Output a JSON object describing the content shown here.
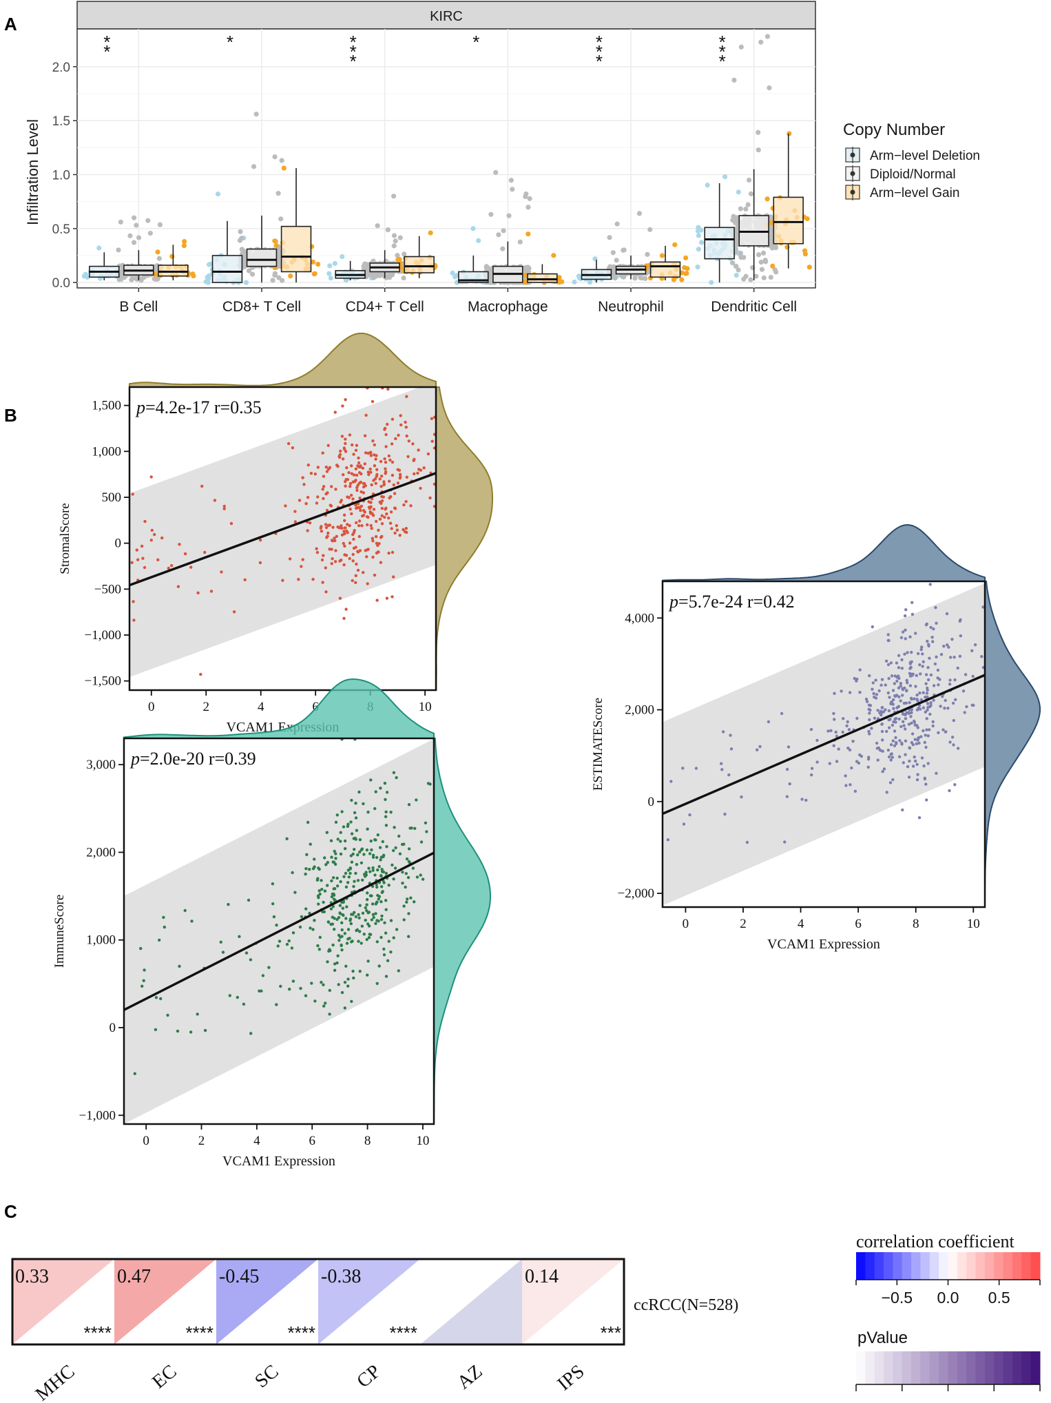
{
  "panels": {
    "A": "A",
    "B": "B",
    "C": "C"
  },
  "chart_data": [
    {
      "id": "A",
      "type": "box",
      "title": "KIRC",
      "ylabel": "Infiltration Level",
      "ylim": [
        -0.05,
        2.35
      ],
      "yticks": [
        "0.0",
        "0.5",
        "1.0",
        "1.5",
        "2.0"
      ],
      "ytick_values": [
        0,
        0.5,
        1.0,
        1.5,
        2.0
      ],
      "categories": [
        "B Cell",
        "CD8+ T Cell",
        "CD4+ T Cell",
        "Macrophage",
        "Neutrophil",
        "Dendritic Cell"
      ],
      "significance": [
        "**",
        "*",
        "***",
        "*",
        "***",
        "***"
      ],
      "legend": {
        "title": "Copy Number",
        "entries": [
          "Arm−level Deletion",
          "Diploid/Normal",
          "Arm−level Gain"
        ],
        "position": "right"
      },
      "groups": [
        {
          "name": "Arm-level Deletion",
          "fill": "#e2eef3",
          "points": "#a9d8ea",
          "box": [
            [
              0.02,
              0.05,
              0.1,
              0.15,
              0.28
            ],
            [
              0.0,
              0.0,
              0.1,
              0.25,
              0.57
            ],
            [
              0.02,
              0.04,
              0.07,
              0.11,
              0.2
            ],
            [
              0.0,
              0.0,
              0.02,
              0.1,
              0.25
            ],
            [
              0.0,
              0.03,
              0.07,
              0.12,
              0.21
            ],
            [
              0.0,
              0.22,
              0.4,
              0.51,
              0.92
            ]
          ],
          "n": [
            20,
            30,
            28,
            28,
            26,
            40
          ],
          "max": [
            0.32,
            0.82,
            0.24,
            0.5,
            0.22,
            0.98
          ]
        },
        {
          "name": "Diploid/Normal",
          "fill": "#f2f2f2",
          "points": "#bcbcbc",
          "box": [
            [
              0.02,
              0.07,
              0.11,
              0.16,
              0.3
            ],
            [
              0.0,
              0.15,
              0.21,
              0.31,
              0.62
            ],
            [
              0.04,
              0.1,
              0.14,
              0.18,
              0.3
            ],
            [
              0.0,
              0.0,
              0.08,
              0.15,
              0.38
            ],
            [
              0.03,
              0.08,
              0.12,
              0.15,
              0.25
            ],
            [
              0.02,
              0.34,
              0.47,
              0.62,
              1.05
            ]
          ],
          "n": [
            160,
            220,
            200,
            190,
            180,
            260
          ],
          "max": [
            0.6,
            1.56,
            0.8,
            1.02,
            0.64,
            2.28
          ]
        },
        {
          "name": "Arm-level Gain",
          "fill": "#fde3b8",
          "points": "#f5a623",
          "box": [
            [
              0.02,
              0.06,
              0.1,
              0.16,
              0.35
            ],
            [
              0.0,
              0.1,
              0.24,
              0.52,
              1.06
            ],
            [
              0.04,
              0.09,
              0.15,
              0.24,
              0.43
            ],
            [
              0.0,
              0.0,
              0.03,
              0.08,
              0.17
            ],
            [
              0.02,
              0.05,
              0.15,
              0.19,
              0.34
            ],
            [
              0.13,
              0.36,
              0.56,
              0.79,
              1.38
            ]
          ],
          "n": [
            20,
            20,
            22,
            20,
            22,
            22
          ],
          "max": [
            0.38,
            1.06,
            0.46,
            0.45,
            0.35,
            1.38
          ]
        }
      ]
    },
    {
      "id": "B1",
      "type": "scatter",
      "annotation_p": "p",
      "annotation_text": "=4.2e-17 r=0.35",
      "xlabel": "VCAM1 Expression",
      "ylabel": "StromalScore",
      "xlim": [
        -0.8,
        10.4
      ],
      "ylim": [
        -1600,
        1700
      ],
      "xticks": [
        "0",
        "2",
        "4",
        "6",
        "8",
        "10"
      ],
      "xtick_values": [
        0,
        2,
        4,
        6,
        8,
        10
      ],
      "yticks": [
        "−1,500",
        "−1,000",
        "−500",
        "0",
        "500",
        "1,000",
        "1,500"
      ],
      "ytick_values": [
        -1500,
        -1000,
        -500,
        0,
        500,
        1000,
        1500
      ],
      "fit": {
        "intercept": -370,
        "slope": 109,
        "band": 1000
      },
      "point_color": "#d9533c",
      "density_color": "#b5a461",
      "density_stroke": "#8e7d2a",
      "n": 420,
      "x_center": 7.7,
      "x_sd": 1.25,
      "resid_sd": 420,
      "seed": 11
    },
    {
      "id": "B2",
      "type": "scatter",
      "annotation_p": "p",
      "annotation_text": "=2.0e-20 r=0.39",
      "xlabel": "VCAM1 Expression",
      "ylabel": "ImmuneScore",
      "xlim": [
        -0.8,
        10.4
      ],
      "ylim": [
        -1100,
        3300
      ],
      "xticks": [
        "0",
        "2",
        "4",
        "6",
        "8",
        "10"
      ],
      "xtick_values": [
        0,
        2,
        4,
        6,
        8,
        10
      ],
      "yticks": [
        "−1,000",
        "0",
        "1,000",
        "2,000",
        "3,000"
      ],
      "ytick_values": [
        -1000,
        0,
        1000,
        2000,
        3000
      ],
      "fit": {
        "intercept": 330,
        "slope": 160,
        "band": 1300
      },
      "point_color": "#2e7d4a",
      "density_color": "#5cc4b0",
      "density_stroke": "#1e8f7a",
      "n": 420,
      "x_center": 7.7,
      "x_sd": 1.25,
      "resid_sd": 520,
      "seed": 23
    },
    {
      "id": "B3",
      "type": "scatter",
      "annotation_p": "p",
      "annotation_text": "=5.7e-24 r=0.42",
      "xlabel": "VCAM1 Expression",
      "ylabel": "ESTIMATEScore",
      "xlim": [
        -0.8,
        10.4
      ],
      "ylim": [
        -2300,
        4800
      ],
      "xticks": [
        "0",
        "2",
        "4",
        "6",
        "8",
        "10"
      ],
      "xtick_values": [
        0,
        2,
        4,
        6,
        8,
        10
      ],
      "yticks": [
        "−2,000",
        "0",
        "2,000",
        "4,000"
      ],
      "ytick_values": [
        -2000,
        0,
        2000,
        4000
      ],
      "fit": {
        "intercept": -50,
        "slope": 270,
        "band": 2000
      },
      "point_color": "#7d7fae",
      "density_color": "#5f7f9e",
      "density_stroke": "#2b4a6b",
      "n": 420,
      "x_center": 7.7,
      "x_sd": 1.25,
      "resid_sd": 850,
      "seed": 37
    },
    {
      "id": "C",
      "type": "heatmap",
      "row_label": "ccRCC(N=528)",
      "columns": [
        "MHC",
        "EC",
        "SC",
        "CP",
        "AZ",
        "IPS"
      ],
      "correlation": [
        0.33,
        0.47,
        -0.45,
        -0.38,
        null,
        0.14
      ],
      "correlation_labels": [
        "0.33",
        "0.47",
        "-0.45",
        "-0.38",
        "",
        "0.14"
      ],
      "significance": [
        "****",
        "****",
        "****",
        "****",
        "",
        "***"
      ],
      "upper_colors": [
        "#f8c8c8",
        "#f4a8a8",
        "#a9a9f4",
        "#c2c2f7",
        "#ffffff",
        "#fbe8e8"
      ],
      "lower_colors": [
        "#ffffff",
        "#ffffff",
        "#ffffff",
        "#ffffff",
        "#d6d6ea",
        "#ffffff"
      ],
      "legend_corr": {
        "title": "correlation coefficient",
        "ticks": [
          "−0.5",
          "0.0",
          "0.5"
        ],
        "tick_values": [
          -0.5,
          0,
          0.5
        ],
        "range": [
          -0.9,
          0.9
        ]
      },
      "legend_p": {
        "title": "pValue"
      }
    }
  ]
}
